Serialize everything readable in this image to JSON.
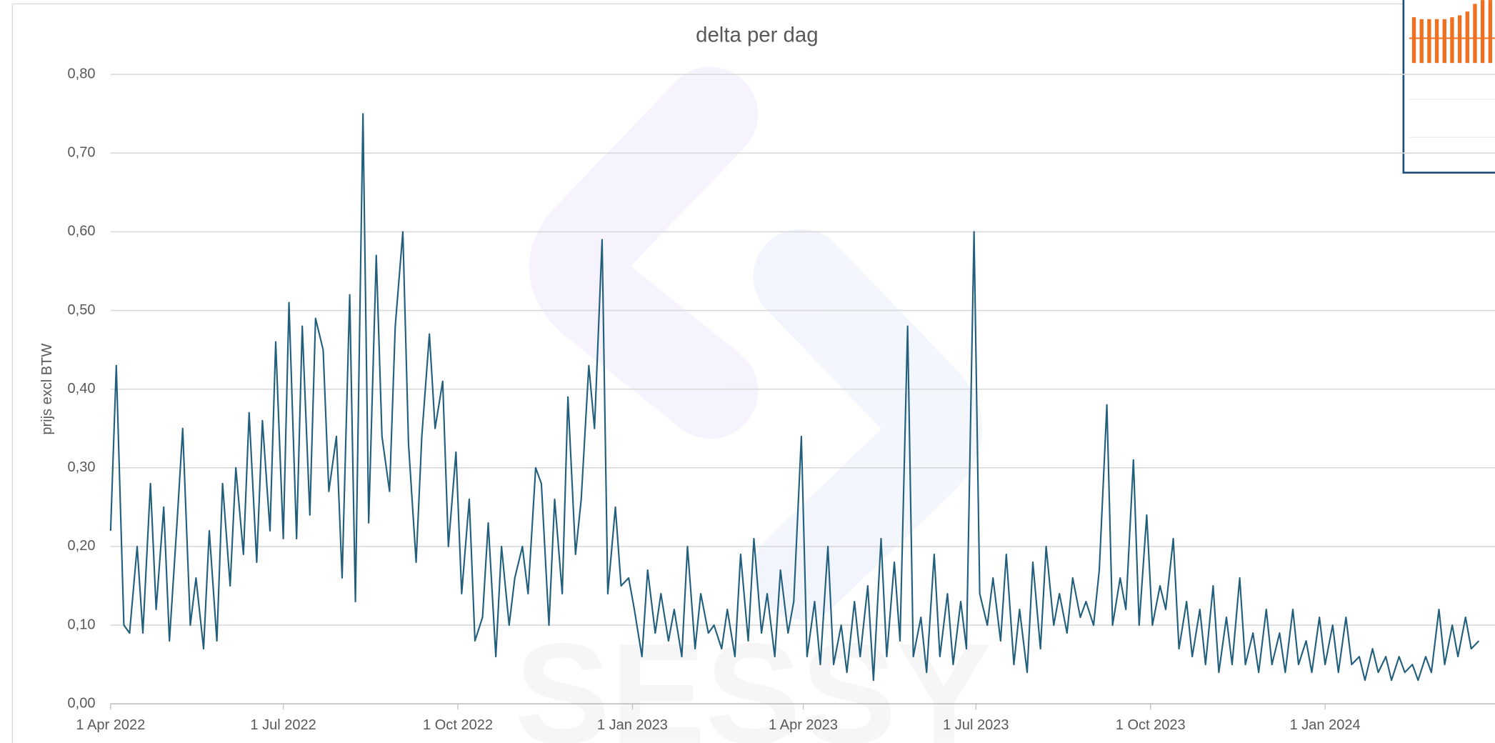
{
  "chart_data": {
    "type": "line",
    "title": "delta per dag",
    "y_label": "prijs excl BTW",
    "x": [
      "2022-04-01",
      "2022-04-04",
      "2022-04-08",
      "2022-04-11",
      "2022-04-15",
      "2022-04-18",
      "2022-04-22",
      "2022-04-25",
      "2022-04-29",
      "2022-05-02",
      "2022-05-06",
      "2022-05-09",
      "2022-05-13",
      "2022-05-16",
      "2022-05-20",
      "2022-05-23",
      "2022-05-27",
      "2022-05-30",
      "2022-06-03",
      "2022-06-06",
      "2022-06-10",
      "2022-06-13",
      "2022-06-17",
      "2022-06-20",
      "2022-06-24",
      "2022-06-27",
      "2022-07-01",
      "2022-07-04",
      "2022-07-08",
      "2022-07-11",
      "2022-07-15",
      "2022-07-18",
      "2022-07-22",
      "2022-07-25",
      "2022-07-29",
      "2022-08-01",
      "2022-08-05",
      "2022-08-08",
      "2022-08-12",
      "2022-08-15",
      "2022-08-19",
      "2022-08-22",
      "2022-08-26",
      "2022-08-29",
      "2022-09-02",
      "2022-09-05",
      "2022-09-09",
      "2022-09-12",
      "2022-09-16",
      "2022-09-19",
      "2022-09-23",
      "2022-09-26",
      "2022-09-30",
      "2022-10-03",
      "2022-10-07",
      "2022-10-10",
      "2022-10-14",
      "2022-10-17",
      "2022-10-21",
      "2022-10-24",
      "2022-10-28",
      "2022-10-31",
      "2022-11-04",
      "2022-11-07",
      "2022-11-11",
      "2022-11-14",
      "2022-11-18",
      "2022-11-21",
      "2022-11-25",
      "2022-11-28",
      "2022-12-02",
      "2022-12-05",
      "2022-12-09",
      "2022-12-12",
      "2022-12-16",
      "2022-12-19",
      "2022-12-23",
      "2022-12-26",
      "2022-12-30",
      "2023-01-02",
      "2023-01-06",
      "2023-01-09",
      "2023-01-13",
      "2023-01-16",
      "2023-01-20",
      "2023-01-23",
      "2023-01-27",
      "2023-01-30",
      "2023-02-03",
      "2023-02-06",
      "2023-02-10",
      "2023-02-13",
      "2023-02-17",
      "2023-02-20",
      "2023-02-24",
      "2023-02-27",
      "2023-03-03",
      "2023-03-06",
      "2023-03-10",
      "2023-03-13",
      "2023-03-17",
      "2023-03-20",
      "2023-03-24",
      "2023-03-27",
      "2023-03-31",
      "2023-04-03",
      "2023-04-07",
      "2023-04-10",
      "2023-04-14",
      "2023-04-17",
      "2023-04-21",
      "2023-04-24",
      "2023-04-28",
      "2023-05-01",
      "2023-05-05",
      "2023-05-08",
      "2023-05-12",
      "2023-05-15",
      "2023-05-19",
      "2023-05-22",
      "2023-05-26",
      "2023-05-29",
      "2023-06-02",
      "2023-06-05",
      "2023-06-09",
      "2023-06-12",
      "2023-06-16",
      "2023-06-19",
      "2023-06-23",
      "2023-06-26",
      "2023-06-30",
      "2023-07-03",
      "2023-07-07",
      "2023-07-10",
      "2023-07-14",
      "2023-07-17",
      "2023-07-21",
      "2023-07-24",
      "2023-07-28",
      "2023-07-31",
      "2023-08-04",
      "2023-08-07",
      "2023-08-11",
      "2023-08-14",
      "2023-08-18",
      "2023-08-21",
      "2023-08-25",
      "2023-08-28",
      "2023-09-01",
      "2023-09-04",
      "2023-09-08",
      "2023-09-11",
      "2023-09-15",
      "2023-09-18",
      "2023-09-22",
      "2023-09-25",
      "2023-09-29",
      "2023-10-02",
      "2023-10-06",
      "2023-10-09",
      "2023-10-13",
      "2023-10-16",
      "2023-10-20",
      "2023-10-23",
      "2023-10-27",
      "2023-10-30",
      "2023-11-03",
      "2023-11-06",
      "2023-11-10",
      "2023-11-13",
      "2023-11-17",
      "2023-11-20",
      "2023-11-24",
      "2023-11-27",
      "2023-12-01",
      "2023-12-04",
      "2023-12-08",
      "2023-12-11",
      "2023-12-15",
      "2023-12-18",
      "2023-12-22",
      "2023-12-25",
      "2023-12-29",
      "2024-01-01",
      "2024-01-05",
      "2024-01-08",
      "2024-01-12",
      "2024-01-15",
      "2024-01-19",
      "2024-01-22",
      "2024-01-26",
      "2024-01-29",
      "2024-02-02",
      "2024-02-05",
      "2024-02-09",
      "2024-02-12",
      "2024-02-16",
      "2024-02-19",
      "2024-02-23",
      "2024-02-26",
      "2024-03-01",
      "2024-03-04",
      "2024-03-08",
      "2024-03-11",
      "2024-03-15",
      "2024-03-18",
      "2024-03-22"
    ],
    "series": [
      {
        "name": "delta",
        "color": "#215f7d",
        "values": [
          0.22,
          0.43,
          0.1,
          0.09,
          0.2,
          0.09,
          0.28,
          0.12,
          0.25,
          0.08,
          0.23,
          0.35,
          0.1,
          0.16,
          0.07,
          0.22,
          0.08,
          0.28,
          0.15,
          0.3,
          0.19,
          0.37,
          0.18,
          0.36,
          0.22,
          0.46,
          0.21,
          0.51,
          0.21,
          0.48,
          0.24,
          0.49,
          0.45,
          0.27,
          0.34,
          0.16,
          0.52,
          0.13,
          0.75,
          0.23,
          0.57,
          0.34,
          0.27,
          0.48,
          0.6,
          0.33,
          0.18,
          0.34,
          0.47,
          0.35,
          0.41,
          0.2,
          0.32,
          0.14,
          0.26,
          0.08,
          0.11,
          0.23,
          0.06,
          0.2,
          0.1,
          0.16,
          0.2,
          0.14,
          0.3,
          0.28,
          0.1,
          0.26,
          0.14,
          0.39,
          0.19,
          0.26,
          0.43,
          0.35,
          0.59,
          0.14,
          0.25,
          0.15,
          0.16,
          0.12,
          0.06,
          0.17,
          0.09,
          0.14,
          0.08,
          0.12,
          0.06,
          0.2,
          0.07,
          0.14,
          0.09,
          0.1,
          0.07,
          0.12,
          0.06,
          0.19,
          0.08,
          0.21,
          0.09,
          0.14,
          0.06,
          0.17,
          0.09,
          0.13,
          0.34,
          0.06,
          0.13,
          0.05,
          0.2,
          0.05,
          0.1,
          0.04,
          0.13,
          0.06,
          0.15,
          0.03,
          0.21,
          0.06,
          0.18,
          0.08,
          0.48,
          0.06,
          0.11,
          0.04,
          0.19,
          0.06,
          0.14,
          0.05,
          0.13,
          0.07,
          0.6,
          0.14,
          0.1,
          0.16,
          0.08,
          0.19,
          0.05,
          0.12,
          0.04,
          0.18,
          0.07,
          0.2,
          0.1,
          0.14,
          0.09,
          0.16,
          0.11,
          0.13,
          0.1,
          0.17,
          0.38,
          0.1,
          0.16,
          0.12,
          0.31,
          0.1,
          0.24,
          0.1,
          0.15,
          0.12,
          0.21,
          0.07,
          0.13,
          0.06,
          0.12,
          0.05,
          0.15,
          0.04,
          0.11,
          0.05,
          0.16,
          0.05,
          0.09,
          0.04,
          0.12,
          0.05,
          0.09,
          0.04,
          0.12,
          0.05,
          0.08,
          0.04,
          0.11,
          0.05,
          0.1,
          0.04,
          0.11,
          0.05,
          0.06,
          0.03,
          0.07,
          0.04,
          0.06,
          0.03,
          0.06,
          0.04,
          0.05,
          0.03,
          0.06,
          0.04,
          0.12,
          0.05,
          0.1,
          0.06,
          0.11,
          0.07,
          0.08
        ]
      }
    ],
    "xlim": [
      "2022-04-01",
      "2024-03-24"
    ],
    "xticks": [
      {
        "value": "2022-04-01",
        "label": "1 Apr 2022"
      },
      {
        "value": "2022-07-01",
        "label": "1 Jul 2022"
      },
      {
        "value": "2022-10-01",
        "label": "1 Oct 2022"
      },
      {
        "value": "2023-01-01",
        "label": "1 Jan 2023"
      },
      {
        "value": "2023-04-01",
        "label": "1 Apr 2023"
      },
      {
        "value": "2023-07-01",
        "label": "1 Jul 2023"
      },
      {
        "value": "2023-10-01",
        "label": "1 Oct 2023"
      },
      {
        "value": "2024-01-01",
        "label": "1 Jan 2024"
      }
    ],
    "ylim": [
      0,
      0.8
    ],
    "yticks": [
      {
        "value": 0,
        "label": "0,00"
      },
      {
        "value": 0.1,
        "label": "0,10"
      },
      {
        "value": 0.2,
        "label": "0,20"
      },
      {
        "value": 0.3,
        "label": "0,30"
      },
      {
        "value": 0.4,
        "label": "0,40"
      },
      {
        "value": 0.5,
        "label": "0,50"
      },
      {
        "value": 0.6,
        "label": "0,60"
      },
      {
        "value": 0.7,
        "label": "0,70"
      },
      {
        "value": 0.8,
        "label": "0,80"
      }
    ],
    "grid": true
  }
}
